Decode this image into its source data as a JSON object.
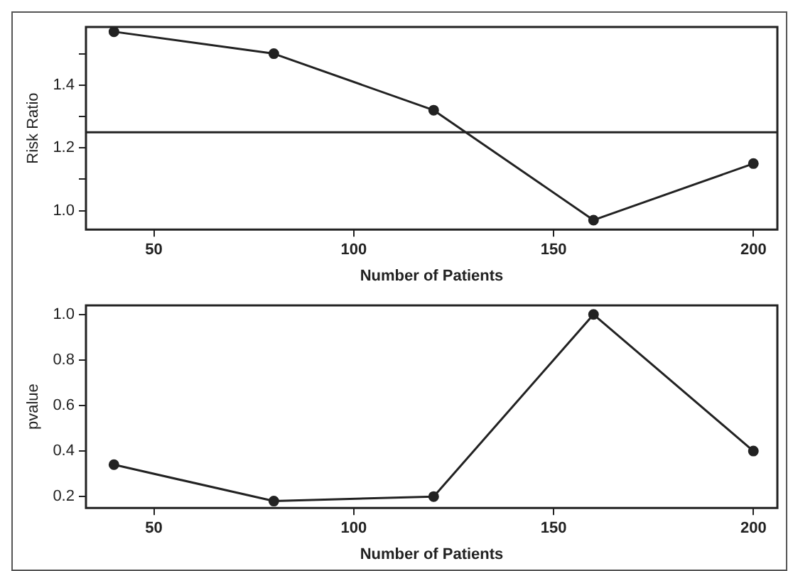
{
  "chart_data": [
    {
      "type": "line",
      "xlabel": "Number of Patients",
      "ylabel": "Risk Ratio",
      "x": [
        40,
        80,
        120,
        160,
        200
      ],
      "series": [
        {
          "color": "#222222",
          "values": [
            1.57,
            1.5,
            1.32,
            0.97,
            1.15
          ]
        }
      ],
      "xlim": [
        33,
        206
      ],
      "xticks": [
        50,
        100,
        150,
        200
      ],
      "ylim": [
        0.94,
        1.585
      ],
      "yticks": [
        {
          "value": 1,
          "label": "1.0"
        },
        {
          "value": 1.1,
          "label": null
        },
        1.2,
        {
          "value": 1.3,
          "label": null
        },
        1.4,
        {
          "value": 1.5,
          "label": null
        }
      ],
      "ref_lines": [
        {
          "axis": "y",
          "value": 1.25,
          "color": "#222222"
        }
      ],
      "marker": "circle",
      "line_style": "solid",
      "grid": false,
      "legend": false
    },
    {
      "type": "line",
      "xlabel": "Number of Patients",
      "ylabel": "pvalue",
      "x": [
        40,
        80,
        120,
        160,
        200
      ],
      "series": [
        {
          "color": "#222222",
          "values": [
            0.34,
            0.18,
            0.2,
            1.0,
            0.4
          ]
        }
      ],
      "xlim": [
        33,
        206
      ],
      "xticks": [
        50,
        100,
        150,
        200
      ],
      "ylim": [
        0.15,
        1.04
      ],
      "yticks": [
        0.2,
        0.4,
        0.6,
        0.8,
        {
          "value": 1,
          "label": "1.0"
        }
      ],
      "marker": "circle",
      "line_style": "solid",
      "grid": false,
      "legend": false
    }
  ]
}
